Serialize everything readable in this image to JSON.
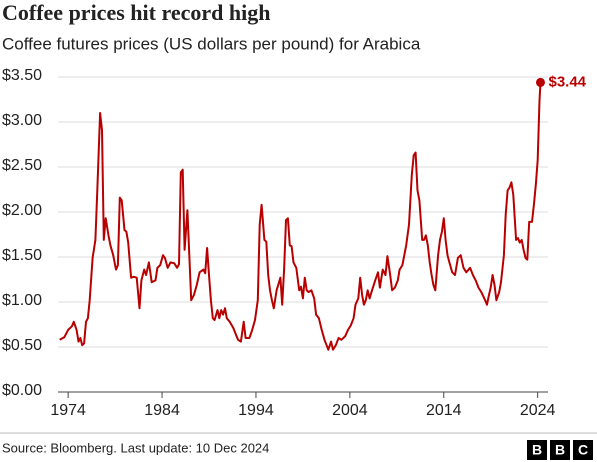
{
  "chart_data": {
    "type": "line",
    "title": "Coffee prices hit record high",
    "subtitle": "Coffee futures prices (US dollars per pound) for Arabica",
    "source": "Source: Bloomberg. Last update: 10 Dec 2024",
    "logo": [
      "B",
      "B",
      "C"
    ],
    "x": [
      1973.1,
      1973.6,
      1974.0,
      1974.4,
      1974.6,
      1974.9,
      1975.1,
      1975.3,
      1975.5,
      1975.7,
      1975.9,
      1976.1,
      1976.3,
      1976.6,
      1976.9,
      1977.1,
      1977.4,
      1977.6,
      1977.8,
      1978.0,
      1978.3,
      1978.5,
      1978.8,
      1979.1,
      1979.3,
      1979.5,
      1979.7,
      1980.0,
      1980.2,
      1980.4,
      1980.7,
      1981.0,
      1981.3,
      1981.6,
      1981.8,
      1982.1,
      1982.3,
      1982.6,
      1982.9,
      1983.3,
      1983.5,
      1983.8,
      1984.1,
      1984.3,
      1984.6,
      1984.9,
      1985.3,
      1985.6,
      1985.8,
      1986.0,
      1986.2,
      1986.4,
      1986.7,
      1986.9,
      1987.1,
      1987.4,
      1987.7,
      1988.0,
      1988.4,
      1988.6,
      1988.8,
      1989.0,
      1989.2,
      1989.4,
      1989.6,
      1989.9,
      1990.1,
      1990.3,
      1990.5,
      1990.7,
      1990.9,
      1991.2,
      1991.6,
      1991.9,
      1992.1,
      1992.4,
      1992.7,
      1992.9,
      1993.3,
      1993.6,
      1993.9,
      1994.2,
      1994.4,
      1994.6,
      1994.9,
      1995.1,
      1995.3,
      1995.5,
      1995.7,
      1995.9,
      1996.2,
      1996.6,
      1996.8,
      1997.0,
      1997.2,
      1997.4,
      1997.6,
      1997.8,
      1998.0,
      1998.3,
      1998.6,
      1998.8,
      1999.0,
      1999.2,
      1999.4,
      1999.6,
      1999.9,
      2000.2,
      2000.4,
      2000.7,
      2001.0,
      2001.3,
      2001.7,
      2002.0,
      2002.2,
      2002.5,
      2002.8,
      2003.1,
      2003.5,
      2003.8,
      2004.1,
      2004.4,
      2004.6,
      2004.9,
      2005.1,
      2005.3,
      2005.5,
      2005.7,
      2005.9,
      2006.1,
      2006.3,
      2006.7,
      2007.0,
      2007.2,
      2007.5,
      2007.8,
      2008.0,
      2008.3,
      2008.5,
      2008.8,
      2009.1,
      2009.3,
      2009.6,
      2010.0,
      2010.3,
      2010.6,
      2010.8,
      2011.0,
      2011.2,
      2011.4,
      2011.7,
      2011.9,
      2012.1,
      2012.3,
      2012.5,
      2012.7,
      2012.9,
      2013.1,
      2013.4,
      2013.6,
      2013.8,
      2014.0,
      2014.2,
      2014.4,
      2014.6,
      2014.9,
      2015.2,
      2015.5,
      2015.8,
      2016.1,
      2016.4,
      2016.8,
      2017.1,
      2017.4,
      2017.7,
      2018.0,
      2018.4,
      2018.6,
      2018.8,
      2019.0,
      2019.2,
      2019.4,
      2019.6,
      2019.9,
      2020.1,
      2020.4,
      2020.6,
      2020.8,
      2021.0,
      2021.2,
      2021.4,
      2021.7,
      2021.9,
      2022.1,
      2022.3,
      2022.5,
      2022.7,
      2022.9,
      2023.1,
      2023.4,
      2023.6,
      2023.8,
      2024.0,
      2024.2,
      2024.3
    ],
    "series": [
      {
        "name": "Arabica",
        "color": "#b80000",
        "values": [
          0.58,
          0.61,
          0.69,
          0.73,
          0.78,
          0.69,
          0.56,
          0.6,
          0.52,
          0.54,
          0.78,
          0.82,
          1.02,
          1.49,
          1.69,
          2.24,
          3.1,
          2.91,
          1.69,
          1.93,
          1.74,
          1.63,
          1.52,
          1.36,
          1.41,
          2.16,
          2.13,
          1.8,
          1.78,
          1.66,
          1.27,
          1.28,
          1.27,
          0.93,
          1.24,
          1.36,
          1.3,
          1.44,
          1.22,
          1.24,
          1.38,
          1.41,
          1.52,
          1.49,
          1.38,
          1.44,
          1.43,
          1.38,
          1.42,
          2.44,
          2.47,
          1.58,
          2.02,
          1.52,
          1.02,
          1.08,
          1.19,
          1.33,
          1.36,
          1.32,
          1.6,
          1.3,
          1.02,
          0.82,
          0.8,
          0.91,
          0.82,
          0.91,
          0.86,
          0.93,
          0.82,
          0.78,
          0.71,
          0.63,
          0.58,
          0.56,
          0.78,
          0.6,
          0.6,
          0.69,
          0.8,
          1.02,
          1.86,
          2.08,
          1.69,
          1.67,
          1.3,
          1.13,
          1.02,
          0.93,
          1.13,
          1.27,
          0.97,
          1.36,
          1.91,
          1.93,
          1.63,
          1.62,
          1.44,
          1.38,
          1.13,
          1.17,
          1.04,
          1.27,
          1.13,
          1.11,
          1.13,
          1.04,
          0.86,
          0.82,
          0.69,
          0.58,
          0.47,
          0.56,
          0.47,
          0.52,
          0.6,
          0.58,
          0.62,
          0.69,
          0.74,
          0.82,
          0.97,
          1.04,
          1.27,
          1.08,
          0.97,
          1.02,
          1.13,
          1.04,
          1.11,
          1.24,
          1.33,
          1.16,
          1.36,
          1.3,
          1.51,
          1.3,
          1.13,
          1.16,
          1.24,
          1.36,
          1.41,
          1.63,
          1.86,
          2.41,
          2.63,
          2.66,
          2.24,
          2.13,
          1.69,
          1.69,
          1.74,
          1.63,
          1.44,
          1.3,
          1.19,
          1.13,
          1.52,
          1.69,
          1.78,
          1.93,
          1.69,
          1.52,
          1.44,
          1.33,
          1.3,
          1.49,
          1.52,
          1.38,
          1.33,
          1.38,
          1.3,
          1.24,
          1.16,
          1.11,
          1.02,
          0.97,
          1.07,
          1.16,
          1.3,
          1.19,
          1.02,
          1.11,
          1.22,
          1.52,
          1.97,
          2.24,
          2.27,
          2.33,
          2.19,
          1.69,
          1.71,
          1.66,
          1.69,
          1.58,
          1.49,
          1.47,
          1.89,
          1.89,
          2.08,
          2.3,
          2.58,
          3.24,
          3.44
        ]
      }
    ],
    "annotations": [
      {
        "text": "$3.44",
        "value": 3.44
      }
    ],
    "xlim": [
      1972.6,
      2025.1
    ],
    "xticks": [
      1974,
      1984,
      1994,
      2004,
      2014,
      2024
    ],
    "ylim": [
      0,
      3.5
    ],
    "yticks": [
      {
        "value": 0,
        "label": "$0.00"
      },
      {
        "value": 0.5,
        "label": "$0.50"
      },
      {
        "value": 1,
        "label": "$1.00"
      },
      {
        "value": 1.5,
        "label": "$1.50"
      },
      {
        "value": 2,
        "label": "$2.00"
      },
      {
        "value": 2.5,
        "label": "$2.50"
      },
      {
        "value": 3,
        "label": "$3.00"
      },
      {
        "value": 3.5,
        "label": "$3.50"
      }
    ],
    "grid": true
  }
}
